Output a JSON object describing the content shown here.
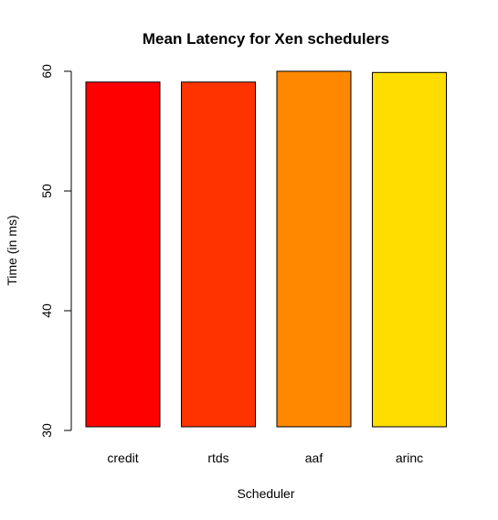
{
  "chart_data": {
    "type": "bar",
    "title": "Mean Latency for Xen schedulers",
    "xlabel": "Scheduler",
    "ylabel": "Time (in ms)",
    "categories": [
      "credit",
      "rtds",
      "aaf",
      "arinc"
    ],
    "values": [
      59.1,
      59.1,
      60.0,
      59.9
    ],
    "colors": [
      "#ff0000",
      "#ff3300",
      "#ff8800",
      "#ffdd00"
    ],
    "ylim": [
      30,
      60
    ],
    "yticks": [
      30,
      40,
      50,
      60
    ],
    "grid": false,
    "legend": "none"
  }
}
